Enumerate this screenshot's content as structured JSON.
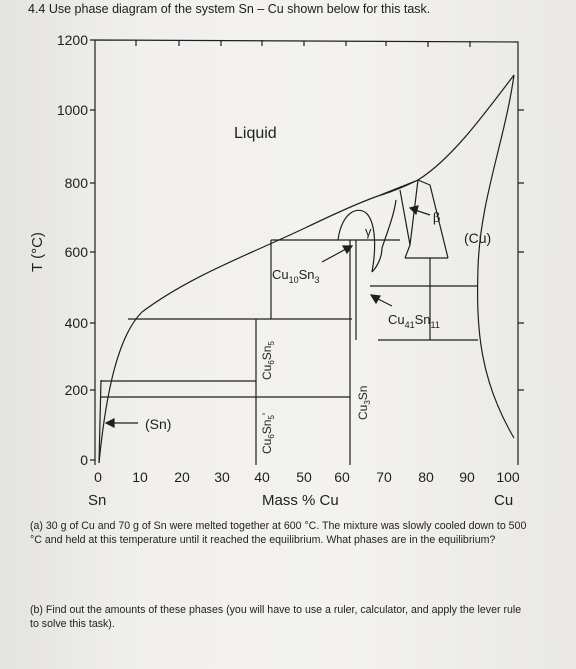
{
  "title": "4.4 Use phase diagram of the system Sn – Cu shown below for this task.",
  "diagram": {
    "y_axis_label": "T (°C)",
    "y_ticks": [
      "1200",
      "1000",
      "800",
      "600",
      "400",
      "200",
      "0"
    ],
    "x_ticks": [
      "0",
      "10",
      "20",
      "30",
      "40",
      "50",
      "60",
      "70",
      "80",
      "90",
      "100"
    ],
    "x_axis_label": "Mass % Cu",
    "x_left_label": "Sn",
    "x_right_label": "Cu",
    "region_labels": {
      "liquid": "Liquid",
      "sn": "(Sn)",
      "cu": "(Cu)",
      "gamma": "γ",
      "beta": "β",
      "cu10sn3": "Cu10Sn3",
      "cu41sn11": "Cu41Sn11",
      "cu6sn5": "Cu6Sn5",
      "cu6sn5_prime": "Cu6Sn5'",
      "cu3sn": "Cu3Sn"
    }
  },
  "questions": {
    "a": "(a) 30 g of Cu and 70 g of Sn were melted together at 600 °C. The mixture was slowly cooled down to 500 °C and held at this temperature until it reached the equilibrium. What phases are in the equilibrium?",
    "b": "(b) Find out the amounts of these phases (you will have to use a ruler, calculator, and apply the lever rule to solve this task)."
  }
}
